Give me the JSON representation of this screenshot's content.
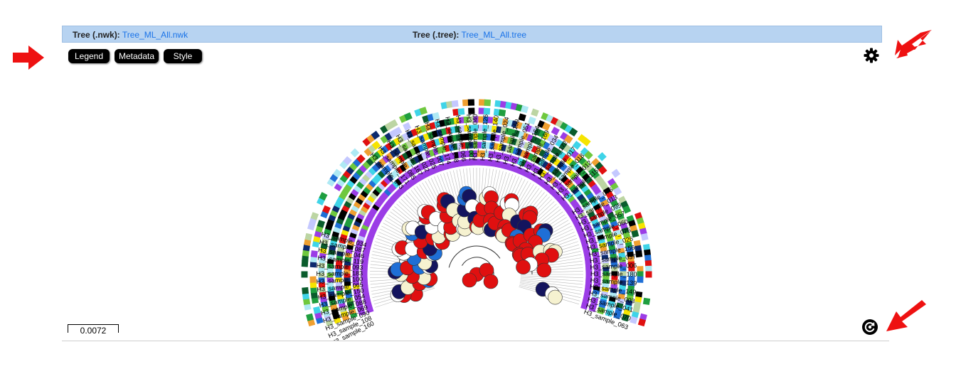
{
  "header": {
    "nwk_label": "Tree (.nwk):",
    "nwk_file": "Tree_ML_All.nwk",
    "tree_label": "Tree (.tree):",
    "tree_file": "Tree_ML_All.tree"
  },
  "buttons": {
    "legend": "Legend",
    "metadata": "Metadata",
    "style": "Style"
  },
  "scale_bar": "0.0072",
  "icons": {
    "settings": "gear-icon",
    "refresh": "refresh-icon",
    "arrow": "red-arrow-icon"
  },
  "colors": {
    "header_bg": "#b7d3f1",
    "link": "#1a73e8",
    "arrow": "#ee1111",
    "node_red": "#e01010",
    "node_blue": "#1f6fd6",
    "ring_purple": "#9b3de6"
  },
  "tree": {
    "left_labels": [
      "H3_sample_160",
      "H3_sample_108",
      "H3_sample_090",
      "H3_sample_069",
      "H3_sample_088",
      "H3_sample_054",
      "H3_sample_150",
      "H3_sample_065",
      "H3_sample_100",
      "H3_sample_183",
      "H3_sample_093",
      "H3_sample_119",
      "H3_sample_046",
      "H3_sample_087",
      "H3_sample_034"
    ],
    "right_labels": [
      "H3_sample_076",
      "H3_sample_013",
      "H3_sample_095",
      "H3_sample_057",
      "H3_sample_060",
      "H3_sample_075",
      "H3_sample_026",
      "H3_sample_156",
      "H3_sample_037",
      "H3_sample_006",
      "H3_sample_180",
      "H3_sample_139",
      "H3_sample_149",
      "H3_sample_003",
      "H3_sample_041",
      "H3_sample_070",
      "H3_sample_063"
    ],
    "top_labels": [
      "H3_sample_073",
      "H3_sample_171",
      "H3_sample_085",
      "H3_sample_167",
      "H3_sample_022",
      "H3_sample_025",
      "H3_sample_007",
      "H3_sample_174",
      "H3_sample_148",
      "H3_sample_066",
      "H3_sample_001",
      "H3_sample_040",
      "H3_sample_126",
      "H3_sample_140",
      "H3_sample_024",
      "H3_sample_159",
      "H3_sample_051",
      "H3_sample_164",
      "H3_sample_169",
      "H3_sample_034",
      "H3_sample_172",
      "H3_sample_017",
      "H3_sample_018",
      "H3_sample_012",
      "H3_sample_115"
    ]
  }
}
